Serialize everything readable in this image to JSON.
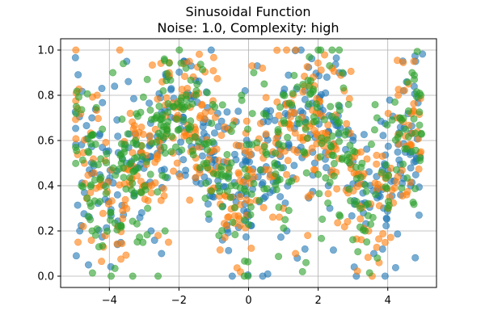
{
  "chart_data": {
    "type": "scatter",
    "title": "Sinusoidal Function",
    "subtitle": "Noise: 1.0, Complexity: high",
    "xlabel": "",
    "ylabel": "",
    "xlim": [
      -5.4,
      5.4
    ],
    "ylim": [
      -0.05,
      1.05
    ],
    "grid": true,
    "legend": "none",
    "x_ticks": [
      -4,
      -2,
      0,
      2,
      4
    ],
    "x_tick_labels": [
      "−4",
      "−2",
      "0",
      "2",
      "4"
    ],
    "y_ticks": [
      0.0,
      0.2,
      0.4,
      0.6,
      0.8,
      1.0
    ],
    "y_tick_labels": [
      "0.0",
      "0.2",
      "0.4",
      "0.6",
      "0.8",
      "1.0"
    ],
    "x_domain": [
      -5,
      5
    ],
    "points_per_series": 420,
    "series": [
      {
        "color": "#1f77b4",
        "opacity": 0.6,
        "points": [
          [
            -4.95,
            0.09
          ],
          [
            -4.85,
            0.2
          ],
          [
            -4.6,
            0.05
          ],
          [
            -4.5,
            0.7
          ],
          [
            -3.85,
            0.84
          ],
          [
            -3.5,
            0.95
          ],
          [
            -3.2,
            0.48
          ],
          [
            -2.8,
            0.2
          ],
          [
            -2.5,
            0.1
          ],
          [
            -2.0,
            0.55
          ],
          [
            -1.85,
            0.95
          ],
          [
            -1.65,
            0.93
          ],
          [
            -1.3,
            0.68
          ],
          [
            -1.0,
            0.35
          ],
          [
            -0.75,
            0.16
          ],
          [
            -0.45,
            0.35
          ],
          [
            -0.1,
            0.82
          ],
          [
            0.25,
            0.93
          ],
          [
            0.5,
            0.72
          ],
          [
            0.8,
            0.42
          ],
          [
            1.1,
            0.2
          ],
          [
            1.4,
            0.08
          ],
          [
            1.62,
            0.12
          ],
          [
            1.9,
            0.5
          ],
          [
            2.25,
            0.88
          ],
          [
            2.6,
            0.9
          ],
          [
            3.0,
            0.6
          ],
          [
            3.3,
            0.28
          ],
          [
            3.6,
            0.1
          ],
          [
            3.85,
            0.12
          ],
          [
            4.1,
            0.42
          ],
          [
            4.45,
            0.82
          ],
          [
            4.8,
            0.95
          ],
          [
            4.9,
            0.27
          ]
        ]
      },
      {
        "color": "#ff7f0e",
        "opacity": 0.6,
        "points": [
          [
            -4.9,
            0.15
          ],
          [
            -4.75,
            0.22
          ],
          [
            -4.35,
            0.8
          ],
          [
            -3.7,
            1.0
          ],
          [
            -3.4,
            0.72
          ],
          [
            -3.0,
            0.4
          ],
          [
            -2.6,
            0.18
          ],
          [
            -2.3,
            0.15
          ],
          [
            -2.05,
            0.5
          ],
          [
            -1.7,
            0.95
          ],
          [
            -1.4,
            0.7
          ],
          [
            -1.1,
            0.55
          ],
          [
            -0.6,
            0.26
          ],
          [
            -0.25,
            0.42
          ],
          [
            0.1,
            0.93
          ],
          [
            0.4,
            0.92
          ],
          [
            0.7,
            0.55
          ],
          [
            1.0,
            0.3
          ],
          [
            1.35,
            0.1
          ],
          [
            1.7,
            0.18
          ],
          [
            2.05,
            0.6
          ],
          [
            2.4,
            0.92
          ],
          [
            2.75,
            0.82
          ],
          [
            3.1,
            0.45
          ],
          [
            3.45,
            0.2
          ],
          [
            3.55,
            0.0
          ],
          [
            3.75,
            0.06
          ],
          [
            4.05,
            0.35
          ],
          [
            4.3,
            0.8
          ],
          [
            4.6,
            0.85
          ],
          [
            4.75,
            0.95
          ],
          [
            4.95,
            0.55
          ]
        ]
      },
      {
        "color": "#2ca02c",
        "opacity": 0.6,
        "points": [
          [
            -4.95,
            0.75
          ],
          [
            -4.8,
            0.4
          ],
          [
            -4.55,
            0.25
          ],
          [
            -4.2,
            0.65
          ],
          [
            -3.9,
            0.9
          ],
          [
            -3.6,
            0.94
          ],
          [
            -3.25,
            0.6
          ],
          [
            -2.9,
            0.3
          ],
          [
            -2.6,
            0.0
          ],
          [
            -2.4,
            0.2
          ],
          [
            -2.15,
            0.75
          ],
          [
            -1.8,
            0.92
          ],
          [
            -1.5,
            0.82
          ],
          [
            -1.2,
            0.5
          ],
          [
            -0.85,
            0.18
          ],
          [
            -0.5,
            0.4
          ],
          [
            -0.2,
            0.8
          ],
          [
            0.15,
            0.9
          ],
          [
            0.45,
            0.85
          ],
          [
            0.75,
            0.5
          ],
          [
            1.05,
            0.25
          ],
          [
            1.55,
            0.02
          ],
          [
            1.65,
            0.06
          ],
          [
            2.0,
            0.45
          ],
          [
            2.4,
            1.0
          ],
          [
            2.7,
            0.9
          ],
          [
            3.05,
            0.55
          ],
          [
            3.35,
            0.2
          ],
          [
            3.7,
            0.08
          ],
          [
            4.0,
            0.3
          ],
          [
            4.35,
            0.7
          ],
          [
            4.7,
            0.9
          ],
          [
            4.95,
            0.8
          ]
        ]
      }
    ]
  }
}
